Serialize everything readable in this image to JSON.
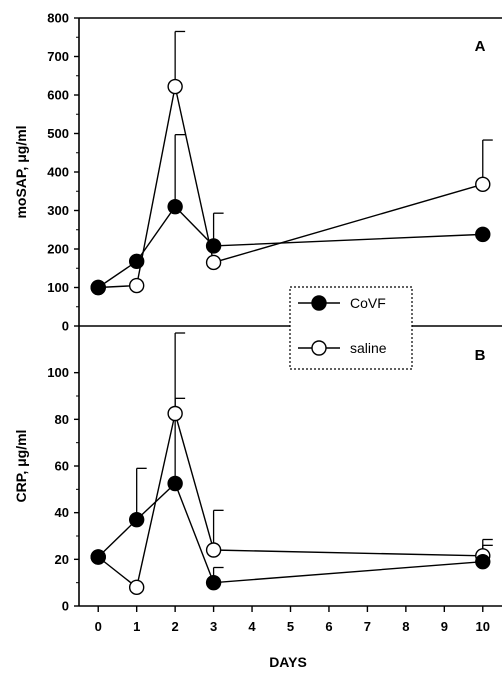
{
  "chart_data": [
    {
      "panel": "A",
      "type": "line",
      "ylabel": "moSAP,  μg/ml",
      "ylim": [
        0,
        800
      ],
      "yticks": [
        0,
        100,
        200,
        300,
        400,
        500,
        600,
        700,
        800
      ],
      "x": [
        0,
        1,
        2,
        3,
        10
      ],
      "series": [
        {
          "name": "CoVF",
          "marker": "filled-circle",
          "values": [
            100,
            168,
            310,
            208,
            238
          ],
          "error_upper": [
            null,
            null,
            497,
            293,
            null
          ]
        },
        {
          "name": "saline",
          "marker": "open-circle",
          "values": [
            100,
            105,
            622,
            165,
            368
          ],
          "error_upper": [
            null,
            null,
            765,
            null,
            483
          ]
        }
      ]
    },
    {
      "panel": "B",
      "type": "line",
      "ylabel": "CRP, μg/ml",
      "xlabel": "DAYS",
      "ylim": [
        0,
        120
      ],
      "yticks": [
        0,
        20,
        40,
        60,
        80,
        100
      ],
      "xlim": [
        -0.5,
        10.5
      ],
      "xticks": [
        0,
        1,
        2,
        3,
        4,
        5,
        6,
        7,
        8,
        9,
        10
      ],
      "x": [
        0,
        1,
        2,
        3,
        10
      ],
      "series": [
        {
          "name": "CoVF",
          "marker": "filled-circle",
          "values": [
            21,
            37,
            52.5,
            10,
            19
          ],
          "error_upper": [
            null,
            59,
            89,
            16.5,
            26
          ]
        },
        {
          "name": "saline",
          "marker": "open-circle",
          "values": [
            21,
            8,
            82.5,
            24,
            21.5
          ],
          "error_upper": [
            null,
            null,
            117,
            41,
            28.5
          ]
        }
      ]
    }
  ],
  "legend": {
    "position": "right-center",
    "entries": [
      "CoVF",
      "saline"
    ]
  },
  "colors": {
    "ink": "#000000",
    "background": "#ffffff"
  }
}
